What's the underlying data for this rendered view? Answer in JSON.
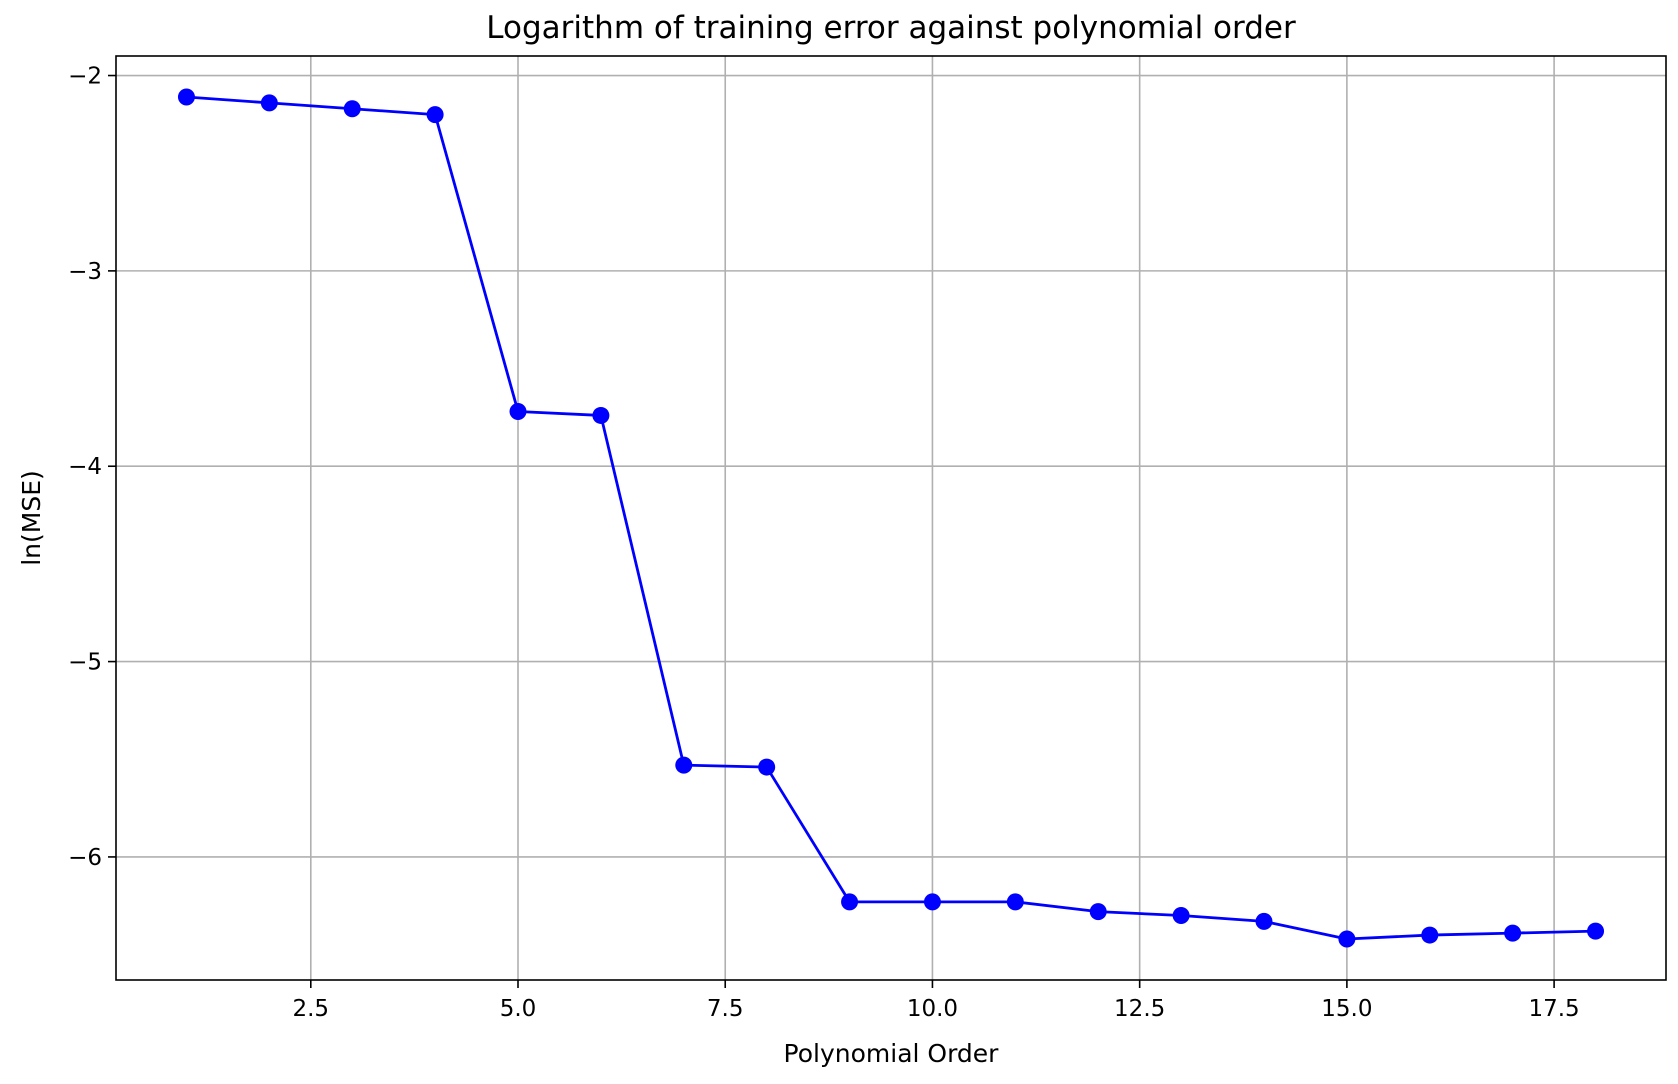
{
  "chart_data": {
    "type": "line",
    "title": "Logarithm of training error against polynomial order",
    "xlabel": "Polynomial Order",
    "ylabel": "ln(MSE)",
    "xlim": [
      0.15,
      18.85
    ],
    "ylim": [
      -6.63,
      -1.9
    ],
    "xticks": [
      2.5,
      5.0,
      7.5,
      10.0,
      12.5,
      15.0,
      17.5
    ],
    "xtick_labels": [
      "2.5",
      "5.0",
      "7.5",
      "10.0",
      "12.5",
      "15.0",
      "17.5"
    ],
    "yticks": [
      -2,
      -3,
      -4,
      -5,
      -6
    ],
    "ytick_labels": [
      "−2",
      "−3",
      "−4",
      "−5",
      "−6"
    ],
    "grid": true,
    "series": [
      {
        "color": "#0000ff",
        "marker": "circle",
        "x": [
          1,
          2,
          3,
          4,
          5,
          6,
          7,
          8,
          9,
          10,
          11,
          12,
          13,
          14,
          15,
          16,
          17,
          18
        ],
        "y": [
          -2.11,
          -2.14,
          -2.17,
          -2.2,
          -3.72,
          -3.74,
          -5.53,
          -5.54,
          -6.23,
          -6.23,
          -6.23,
          -6.28,
          -6.3,
          -6.33,
          -6.42,
          -6.4,
          -6.39,
          -6.38
        ]
      }
    ]
  }
}
